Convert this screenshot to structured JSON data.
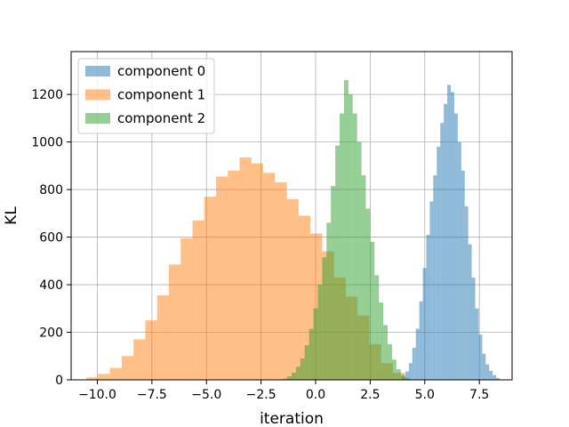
{
  "chart_data": {
    "type": "histogram",
    "title": "",
    "xlabel": "iteration",
    "ylabel": "KL",
    "xlim": [
      -11.2,
      9.0
    ],
    "ylim": [
      0,
      1380
    ],
    "xticks": [
      -10.0,
      -7.5,
      -5.0,
      -2.5,
      0.0,
      2.5,
      5.0,
      7.5
    ],
    "xtick_labels": [
      "−10.0",
      "−7.5",
      "−5.0",
      "−2.5",
      "0.0",
      "2.5",
      "5.0",
      "7.5"
    ],
    "yticks": [
      0,
      200,
      400,
      600,
      800,
      1000,
      1200
    ],
    "ytick_labels": [
      "0",
      "200",
      "400",
      "600",
      "800",
      "1000",
      "1200"
    ],
    "grid": true,
    "legend_position": "top-left",
    "series": [
      {
        "name": "component 0",
        "color": "#1f77b4",
        "bin_width": 0.16,
        "bin_start": 3.95,
        "counts": [
          12,
          35,
          70,
          135,
          215,
          330,
          470,
          610,
          750,
          860,
          980,
          1080,
          1160,
          1240,
          1210,
          1120,
          1000,
          880,
          730,
          570,
          430,
          300,
          190,
          110,
          65,
          38,
          20,
          8
        ]
      },
      {
        "name": "component 1",
        "color": "#ff7f0e",
        "bin_width": 0.54,
        "bin_start": -10.5,
        "counts": [
          10,
          25,
          50,
          100,
          170,
          250,
          355,
          485,
          595,
          670,
          770,
          855,
          880,
          935,
          910,
          870,
          830,
          760,
          690,
          615,
          540,
          430,
          350,
          270,
          150,
          70,
          30
        ]
      },
      {
        "name": "component 2",
        "color": "#2ca02c",
        "bin_width": 0.2,
        "bin_start": -1.5,
        "counts": [
          5,
          15,
          30,
          55,
          90,
          145,
          215,
          300,
          400,
          515,
          660,
          815,
          985,
          1120,
          1260,
          1200,
          1120,
          1000,
          860,
          720,
          580,
          440,
          325,
          230,
          150,
          85,
          45,
          20,
          8
        ]
      }
    ]
  }
}
